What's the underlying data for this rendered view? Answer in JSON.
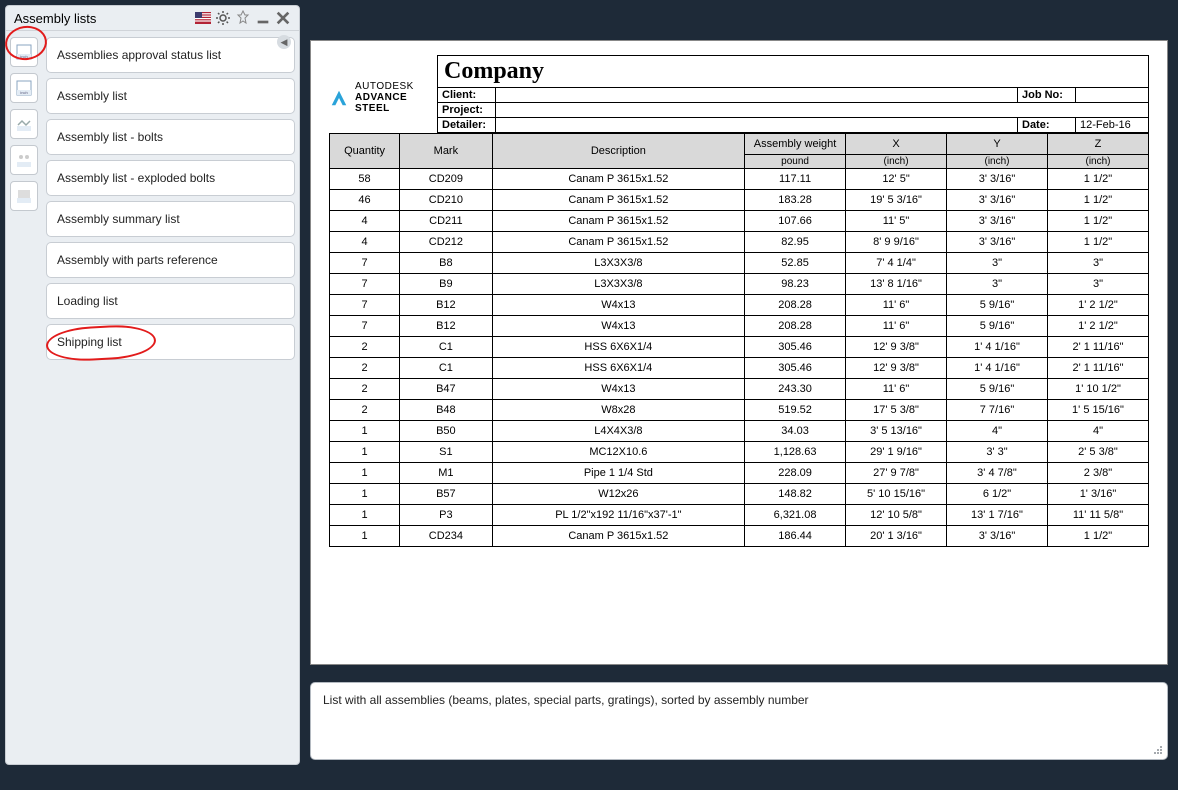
{
  "sidebar": {
    "title": "Assembly lists",
    "items": [
      "Assemblies approval status list",
      "Assembly list",
      "Assembly list - bolts",
      "Assembly list - exploded bolts",
      "Assembly summary list",
      "Assembly with parts reference",
      "Loading list",
      "Shipping list"
    ]
  },
  "logo": {
    "line1": "AUTODESK",
    "line2": "ADVANCE STEEL",
    "accent": "#2aa3d9"
  },
  "report": {
    "company": "Company",
    "labels": {
      "client": "Client:",
      "project": "Project:",
      "detailer": "Detailer:",
      "jobno": "Job No:",
      "date": "Date:"
    },
    "client": "",
    "project": "",
    "detailer": "",
    "job_no": "",
    "date": "12-Feb-16",
    "columns": [
      "Quantity",
      "Mark",
      "Description",
      "Assembly weight",
      "X",
      "Y",
      "Z"
    ],
    "sub_units": [
      "",
      "",
      "",
      "pound",
      "(inch)",
      "(inch)",
      "(inch)"
    ],
    "col_widths": [
      "50px",
      "66px",
      "180px",
      "72px",
      "72px",
      "72px",
      "72px"
    ],
    "header_bg": "#d9d9d9",
    "border_color": "#000000",
    "fontsize": 11,
    "rows": [
      [
        "58",
        "CD209",
        "Canam P 3615x1.52",
        "117.11",
        "12' 5\"",
        "3' 3/16\"",
        "1 1/2\""
      ],
      [
        "46",
        "CD210",
        "Canam P 3615x1.52",
        "183.28",
        "19' 5 3/16\"",
        "3' 3/16\"",
        "1 1/2\""
      ],
      [
        "4",
        "CD211",
        "Canam P 3615x1.52",
        "107.66",
        "11' 5\"",
        "3' 3/16\"",
        "1 1/2\""
      ],
      [
        "4",
        "CD212",
        "Canam P 3615x1.52",
        "82.95",
        "8' 9 9/16\"",
        "3' 3/16\"",
        "1 1/2\""
      ],
      [
        "7",
        "B8",
        "L3X3X3/8",
        "52.85",
        "7' 4 1/4\"",
        "3\"",
        "3\""
      ],
      [
        "7",
        "B9",
        "L3X3X3/8",
        "98.23",
        "13' 8 1/16\"",
        "3\"",
        "3\""
      ],
      [
        "7",
        "B12",
        "W4x13",
        "208.28",
        "11' 6\"",
        "5 9/16\"",
        "1' 2 1/2\""
      ],
      [
        "7",
        "B12",
        "W4x13",
        "208.28",
        "11' 6\"",
        "5 9/16\"",
        "1' 2 1/2\""
      ],
      [
        "2",
        "C1",
        "HSS 6X6X1/4",
        "305.46",
        "12' 9 3/8\"",
        "1' 4 1/16\"",
        "2' 1 11/16\""
      ],
      [
        "2",
        "C1",
        "HSS 6X6X1/4",
        "305.46",
        "12' 9 3/8\"",
        "1' 4 1/16\"",
        "2' 1 11/16\""
      ],
      [
        "2",
        "B47",
        "W4x13",
        "243.30",
        "11' 6\"",
        "5 9/16\"",
        "1' 10 1/2\""
      ],
      [
        "2",
        "B48",
        "W8x28",
        "519.52",
        "17' 5 3/8\"",
        "7 7/16\"",
        "1' 5 15/16\""
      ],
      [
        "1",
        "B50",
        "L4X4X3/8",
        "34.03",
        "3' 5 13/16\"",
        "4\"",
        "4\""
      ],
      [
        "1",
        "S1",
        "MC12X10.6",
        "1,128.63",
        "29' 1 9/16\"",
        "3' 3\"",
        "2' 5 3/8\""
      ],
      [
        "1",
        "M1",
        "Pipe 1 1/4 Std",
        "228.09",
        "27' 9 7/8\"",
        "3' 4 7/8\"",
        "2 3/8\""
      ],
      [
        "1",
        "B57",
        "W12x26",
        "148.82",
        "5' 10 15/16\"",
        "6 1/2\"",
        "1' 3/16\""
      ],
      [
        "1",
        "P3",
        "PL 1/2\"x192 11/16\"x37'-1\"",
        "6,321.08",
        "12' 10 5/8\"",
        "13' 1 7/16\"",
        "11' 11 5/8\""
      ],
      [
        "1",
        "CD234",
        "Canam P 3615x1.52",
        "186.44",
        "20' 1 3/16\"",
        "3' 3/16\"",
        "1 1/2\""
      ]
    ]
  },
  "status": {
    "text": "List with all assemblies (beams, plates, special parts, gratings), sorted by assembly number"
  },
  "colors": {
    "app_bg": "#1e2a38",
    "panel_bg": "#eaeef2",
    "white": "#ffffff",
    "red": "#e21b1b"
  }
}
